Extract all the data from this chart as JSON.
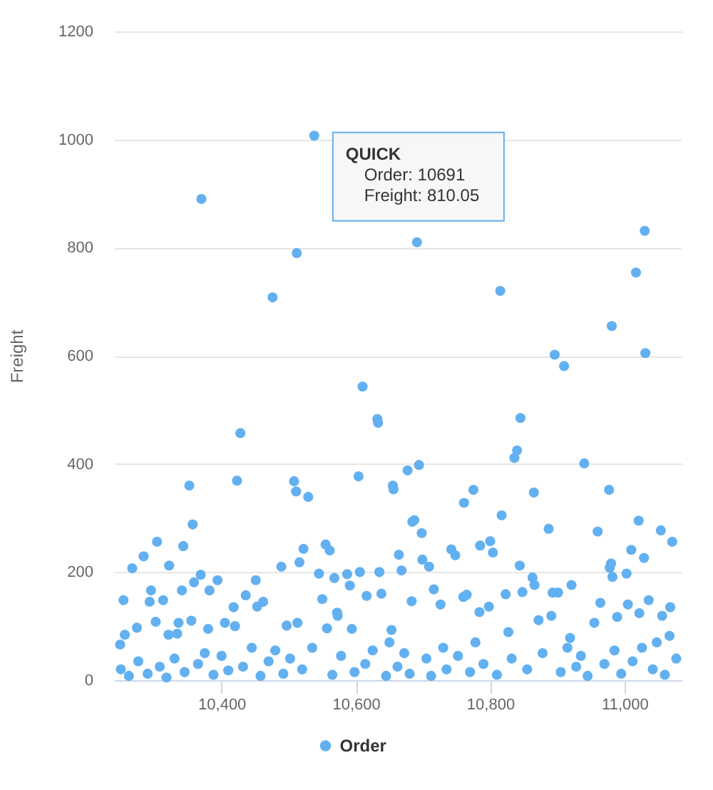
{
  "chart_data": {
    "type": "scatter",
    "ylabel": "Freight",
    "marker": "circle",
    "grid": "y",
    "legend": "bottom",
    "xlim": [
      10240,
      11085
    ],
    "ylim": [
      0,
      1200
    ],
    "xticks": [
      {
        "value": 10400,
        "label": "10,400"
      },
      {
        "value": 10600,
        "label": "10,600"
      },
      {
        "value": 10800,
        "label": "10,800"
      },
      {
        "value": 11000,
        "label": "11,000"
      }
    ],
    "yticks": [
      0,
      200,
      400,
      600,
      800,
      1000,
      1200
    ],
    "annotations": [
      {
        "text": "QUICK\nOrder: 10691\nFreight: 810.05",
        "x": 10691,
        "y": 810.05
      }
    ],
    "x": [
      10249,
      10250,
      10254,
      10256,
      10262,
      10267,
      10274,
      10276,
      10284,
      10290,
      10293,
      10295,
      10302,
      10304,
      10308,
      10313,
      10318,
      10321,
      10322,
      10330,
      10334,
      10336,
      10341,
      10343,
      10345,
      10352,
      10355,
      10357,
      10359,
      10365,
      10369,
      10370,
      10375,
      10380,
      10382,
      10388,
      10394,
      10400,
      10405,
      10410,
      10418,
      10420,
      10423,
      10428,
      10432,
      10436,
      10445,
      10451,
      10453,
      10458,
      10462,
      10470,
      10476,
      10480,
      10489,
      10492,
      10497,
      10502,
      10508,
      10511,
      10512,
      10513,
      10516,
      10520,
      10522,
      10529,
      10535,
      10538,
      10545,
      10550,
      10555,
      10557,
      10561,
      10565,
      10568,
      10572,
      10573,
      10578,
      10587,
      10591,
      10594,
      10598,
      10604,
      10606,
      10610,
      10614,
      10616,
      10625,
      10632,
      10633,
      10635,
      10638,
      10645,
      10650,
      10653,
      10655,
      10656,
      10662,
      10664,
      10668,
      10672,
      10677,
      10680,
      10683,
      10684,
      10687,
      10691,
      10694,
      10698,
      10699,
      10705,
      10709,
      10712,
      10716,
      10726,
      10730,
      10735,
      10742,
      10748,
      10752,
      10760,
      10761,
      10765,
      10770,
      10775,
      10778,
      10784,
      10785,
      10790,
      10798,
      10800,
      10804,
      10810,
      10815,
      10817,
      10823,
      10827,
      10832,
      10836,
      10840,
      10844,
      10845,
      10848,
      10855,
      10863,
      10865,
      10866,
      10872,
      10878,
      10887,
      10891,
      10893,
      10896,
      10901,
      10905,
      10910,
      10915,
      10919,
      10921,
      10928,
      10935,
      10940,
      10945,
      10955,
      10960,
      10964,
      10970,
      10977,
      10978,
      10980,
      10981,
      10982,
      10985,
      10989,
      10995,
      11003,
      11005,
      11010,
      11012,
      11017,
      11021,
      11022,
      11026,
      11029,
      11030,
      11031,
      11036,
      11042,
      11048,
      11054,
      11056,
      11060,
      11067,
      11068,
      11071,
      11077
    ],
    "series": [
      {
        "name": "Order",
        "color": "#62b0f0",
        "values": [
          66,
          20,
          148,
          84,
          8,
          207,
          97,
          35,
          229,
          12,
          145,
          166,
          108,
          256,
          25,
          148,
          5,
          84,
          212,
          40,
          86,
          106,
          166,
          248,
          15,
          360,
          110,
          288,
          181,
          30,
          195,
          890,
          50,
          95,
          166,
          10,
          185,
          45,
          106,
          18,
          135,
          100,
          369,
          457,
          25,
          157,
          60,
          185,
          136,
          8,
          145,
          35,
          708,
          55,
          210,
          12,
          101,
          40,
          368,
          349,
          790,
          106,
          218,
          20,
          243,
          339,
          60,
          1007,
          197,
          150,
          251,
          96,
          240,
          10,
          189,
          125,
          119,
          45,
          196,
          175,
          95,
          15,
          377,
          200,
          543,
          30,
          156,
          55,
          483,
          476,
          200,
          160,
          8,
          70,
          93,
          360,
          353,
          25,
          232,
          203,
          50,
          388,
          12,
          146,
          293,
          296,
          810.05,
          398,
          272,
          223,
          40,
          210,
          8,
          168,
          140,
          60,
          20,
          242,
          231,
          45,
          154,
          328,
          158,
          15,
          352,
          70,
          126,
          249,
          30,
          136,
          257,
          236,
          10,
          720,
          305,
          159,
          89,
          40,
          411,
          425,
          212,
          485,
          163,
          20,
          190,
          347,
          176,
          111,
          50,
          280,
          119,
          162,
          602,
          162,
          15,
          581,
          60,
          78,
          176,
          25,
          45,
          401,
          8,
          106,
          275,
          143,
          30,
          352,
          208,
          216,
          655,
          191,
          55,
          117,
          12,
          197,
          140,
          241,
          35,
          754,
          295,
          124,
          60,
          226,
          831,
          605,
          148,
          20,
          70,
          277,
          119,
          10,
          82,
          135,
          256,
          40
        ]
      }
    ]
  }
}
